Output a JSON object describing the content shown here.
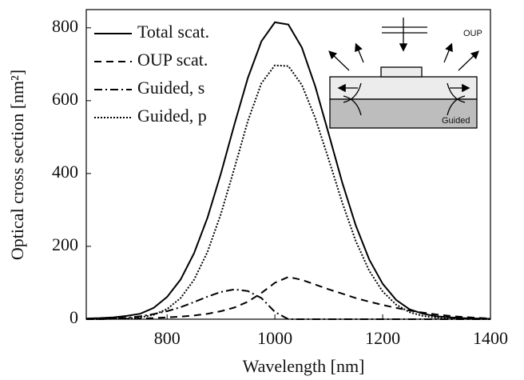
{
  "chart_data": {
    "type": "line",
    "xlabel": "Wavelength [nm]",
    "ylabel": "Optical cross section [nm²]",
    "x": [
      650,
      675,
      700,
      725,
      750,
      775,
      800,
      825,
      850,
      875,
      900,
      925,
      950,
      975,
      1000,
      1025,
      1050,
      1075,
      1100,
      1125,
      1150,
      1175,
      1200,
      1225,
      1250,
      1275,
      1300,
      1325,
      1350,
      1375,
      1400
    ],
    "series": [
      {
        "name": "Total scat.",
        "color": "#000000",
        "style": "solid",
        "values": [
          2,
          3,
          5,
          9,
          15,
          31,
          61,
          109,
          181,
          279,
          401,
          535,
          663,
          763,
          815,
          809,
          746,
          639,
          508,
          375,
          258,
          164,
          97,
          53,
          27,
          15,
          8,
          5,
          3,
          2,
          1
        ]
      },
      {
        "name": "OUP scat.",
        "color": "#000000",
        "style": "dashed",
        "values": [
          0,
          0,
          1,
          1,
          2,
          3,
          5,
          7,
          10,
          15,
          22,
          32,
          48,
          72,
          100,
          116,
          108,
          95,
          82,
          70,
          58,
          48,
          39,
          31,
          24,
          18,
          13,
          9,
          6,
          4,
          2
        ]
      },
      {
        "name": "Guided, s",
        "color": "#000000",
        "style": "dashdot",
        "values": [
          0,
          1,
          2,
          4,
          8,
          14,
          22,
          33,
          47,
          62,
          75,
          82,
          77,
          58,
          20,
          0,
          0,
          0,
          0,
          0,
          0,
          0,
          0,
          0,
          0,
          0,
          0,
          0,
          0,
          0,
          0
        ]
      },
      {
        "name": "Guided, p",
        "color": "#000000",
        "style": "dotted",
        "values": [
          0,
          0,
          1,
          2,
          5,
          12,
          28,
          58,
          108,
          185,
          290,
          415,
          545,
          648,
          697,
          695,
          643,
          552,
          438,
          320,
          215,
          133,
          76,
          40,
          19,
          9,
          4,
          2,
          1,
          0,
          0
        ]
      }
    ],
    "xlim": [
      650,
      1400
    ],
    "xticks": [
      800,
      1000,
      1200,
      1400
    ],
    "ylim": [
      0,
      850
    ],
    "yticks": [
      0,
      200,
      400,
      600,
      800
    ],
    "legend": "upper left",
    "annotations": [
      "OUP",
      "Guided"
    ]
  }
}
